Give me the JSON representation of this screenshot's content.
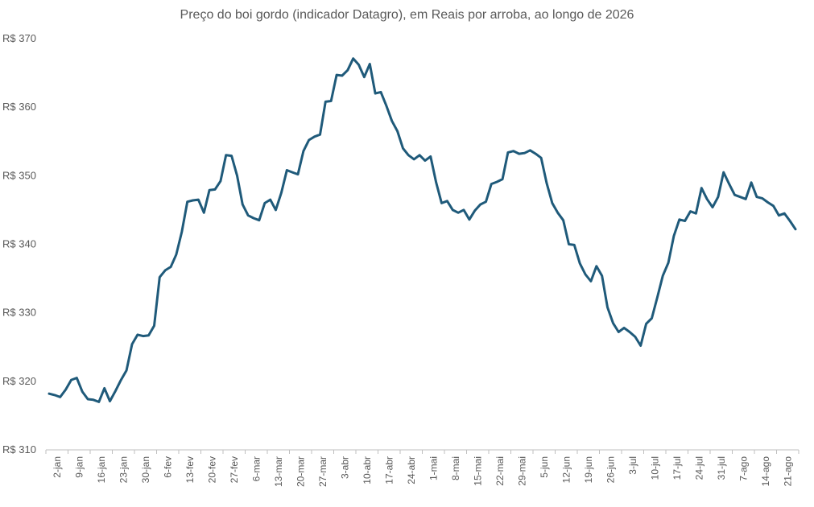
{
  "chart_data": {
    "type": "line",
    "title": "Preço do boi gordo (indicador Datagro), em Reais por arroba, ao longo de 2026",
    "xlabel": "",
    "ylabel": "",
    "ylim": [
      310,
      370
    ],
    "y_ticks": [
      310,
      320,
      330,
      340,
      350,
      360,
      370
    ],
    "y_tick_prefix": "R$ ",
    "grid": false,
    "line_color": "#1f5a7a",
    "x_tick_labels": [
      "2-jan",
      "9-jan",
      "16-jan",
      "23-jan",
      "30-jan",
      "6-fev",
      "13-fev",
      "20-fev",
      "27-fev",
      "6-mar",
      "13-mar",
      "20-mar",
      "27-mar",
      "3-abr",
      "10-abr",
      "17-abr",
      "24-abr",
      "1-mai",
      "8-mai",
      "15-mai",
      "22-mai",
      "29-mai",
      "5-jun",
      "12-jun",
      "19-jun",
      "26-jun",
      "3-jul",
      "10-jul",
      "17-jul",
      "24-jul",
      "31-jul",
      "7-ago",
      "14-ago",
      "21-ago"
    ],
    "series": [
      {
        "values": [
          318.2,
          318.0,
          317.7,
          318.8,
          320.2,
          320.5,
          318.5,
          317.4,
          317.3,
          317.0,
          319.0,
          317.1,
          318.6,
          320.2,
          321.6,
          325.4,
          326.8,
          326.6,
          326.7,
          328.1,
          335.2,
          336.2,
          336.7,
          338.5,
          341.8,
          346.2,
          346.4,
          346.5,
          344.6,
          347.9,
          348.0,
          349.2,
          353.0,
          352.9,
          350.0,
          345.8,
          344.2,
          343.8,
          343.5,
          346.0,
          346.5,
          345.0,
          347.5,
          350.8,
          350.5,
          350.2,
          353.6,
          355.2,
          355.7,
          356.0,
          360.8,
          360.9,
          364.7,
          364.6,
          365.4,
          367.1,
          366.2,
          364.4,
          366.3,
          362.0,
          362.2,
          360.2,
          358.0,
          356.5,
          354.0,
          353.0,
          352.4,
          353.0,
          352.2,
          352.8,
          349.0,
          346.0,
          346.3,
          345.0,
          344.6,
          345.0,
          343.6,
          344.9,
          345.8,
          346.2,
          348.8,
          349.1,
          349.5,
          353.4,
          353.6,
          353.2,
          353.3,
          353.7,
          353.2,
          352.6,
          348.9,
          346.0,
          344.6,
          343.5,
          340.0,
          339.9,
          337.2,
          335.6,
          334.6,
          336.8,
          335.4,
          330.8,
          328.5,
          327.2,
          327.8,
          327.2,
          326.5,
          325.2,
          328.4,
          329.2,
          332.2,
          335.4,
          337.3,
          341.2,
          343.6,
          343.4,
          344.8,
          344.5,
          348.2,
          346.6,
          345.4,
          346.9,
          350.5,
          348.8,
          347.2,
          346.9,
          346.6,
          349.0,
          346.9,
          346.7,
          346.1,
          345.6,
          344.2,
          344.5,
          343.4,
          342.2
        ]
      }
    ]
  }
}
